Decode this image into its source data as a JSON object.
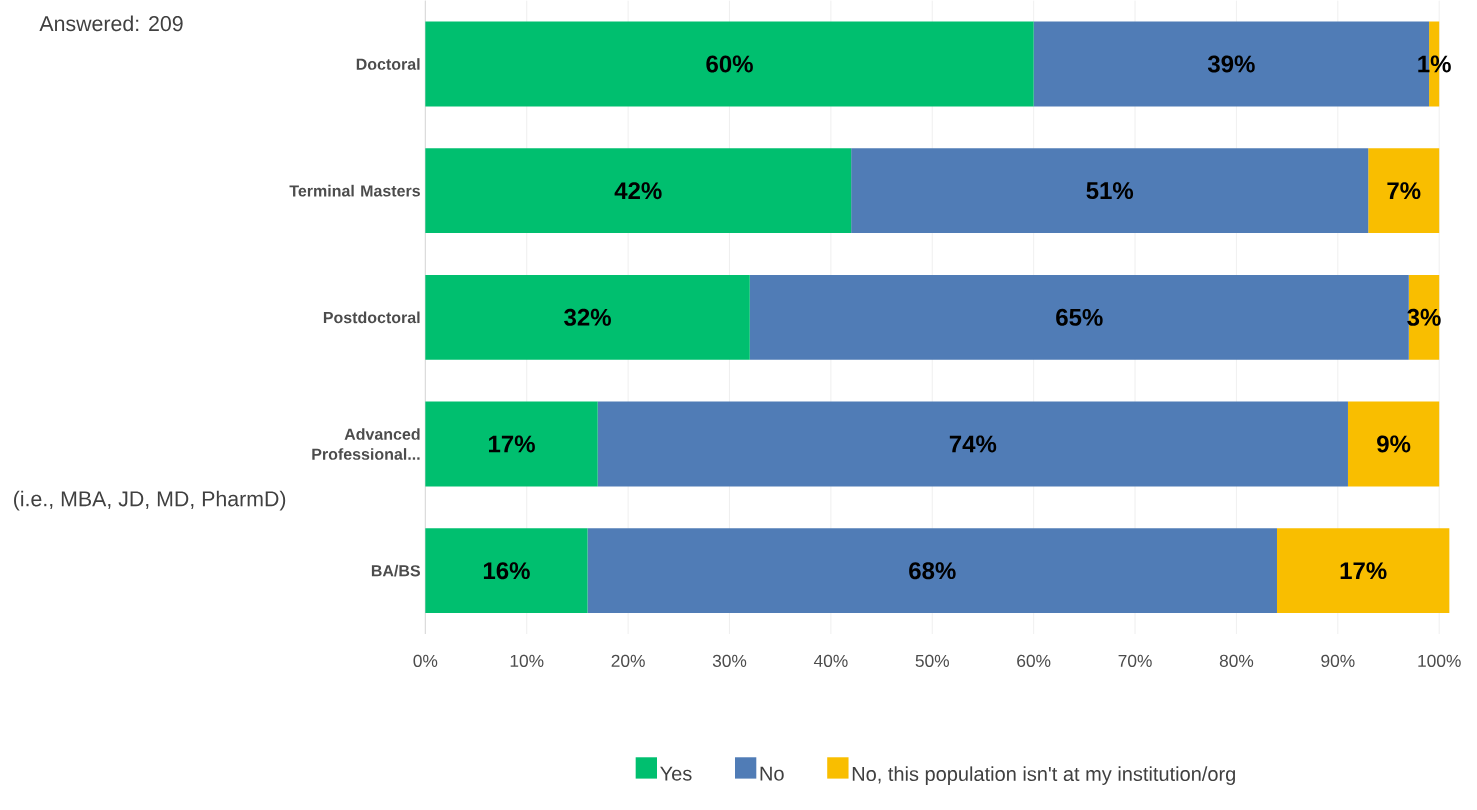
{
  "chart_data": {
    "type": "bar",
    "orientation": "horizontal",
    "stacked": true,
    "categories": [
      "Doctoral",
      "Terminal Masters",
      "Postdoctoral",
      "Advanced Professional...",
      "BA/BS"
    ],
    "series": [
      {
        "name": "Yes",
        "color": "#00bf6f",
        "values": [
          60,
          42,
          32,
          17,
          16
        ],
        "value_labels": [
          "60%",
          "42%",
          "32%",
          "17%",
          "16%"
        ]
      },
      {
        "name": "No",
        "color": "#507cb6",
        "values": [
          39,
          51,
          65,
          74,
          68
        ],
        "value_labels": [
          "39%",
          "51%",
          "65%",
          "74%",
          "68%"
        ]
      },
      {
        "name": "No, this population isn't at my institution/org",
        "color": "#f9be00",
        "values": [
          1,
          7,
          3,
          9,
          17
        ],
        "value_labels": [
          "1%",
          "7%",
          "3%",
          "9%",
          "17%"
        ]
      }
    ],
    "xlim": [
      0,
      101
    ],
    "xticks": [
      {
        "value": 0,
        "label": "0%"
      },
      {
        "value": 10,
        "label": "10%"
      },
      {
        "value": 20,
        "label": "20%"
      },
      {
        "value": 30,
        "label": "30%"
      },
      {
        "value": 40,
        "label": "40%"
      },
      {
        "value": 50,
        "label": "50%"
      },
      {
        "value": 60,
        "label": "60%"
      },
      {
        "value": 70,
        "label": "70%"
      },
      {
        "value": 80,
        "label": "80%"
      },
      {
        "value": 90,
        "label": "90%"
      },
      {
        "value": 100,
        "label": "100%"
      }
    ],
    "grid": "x",
    "legend": "bottom",
    "annotations": [
      "Answered: 209",
      "(i.e., MBA, JD, MD, PharmD)"
    ]
  }
}
